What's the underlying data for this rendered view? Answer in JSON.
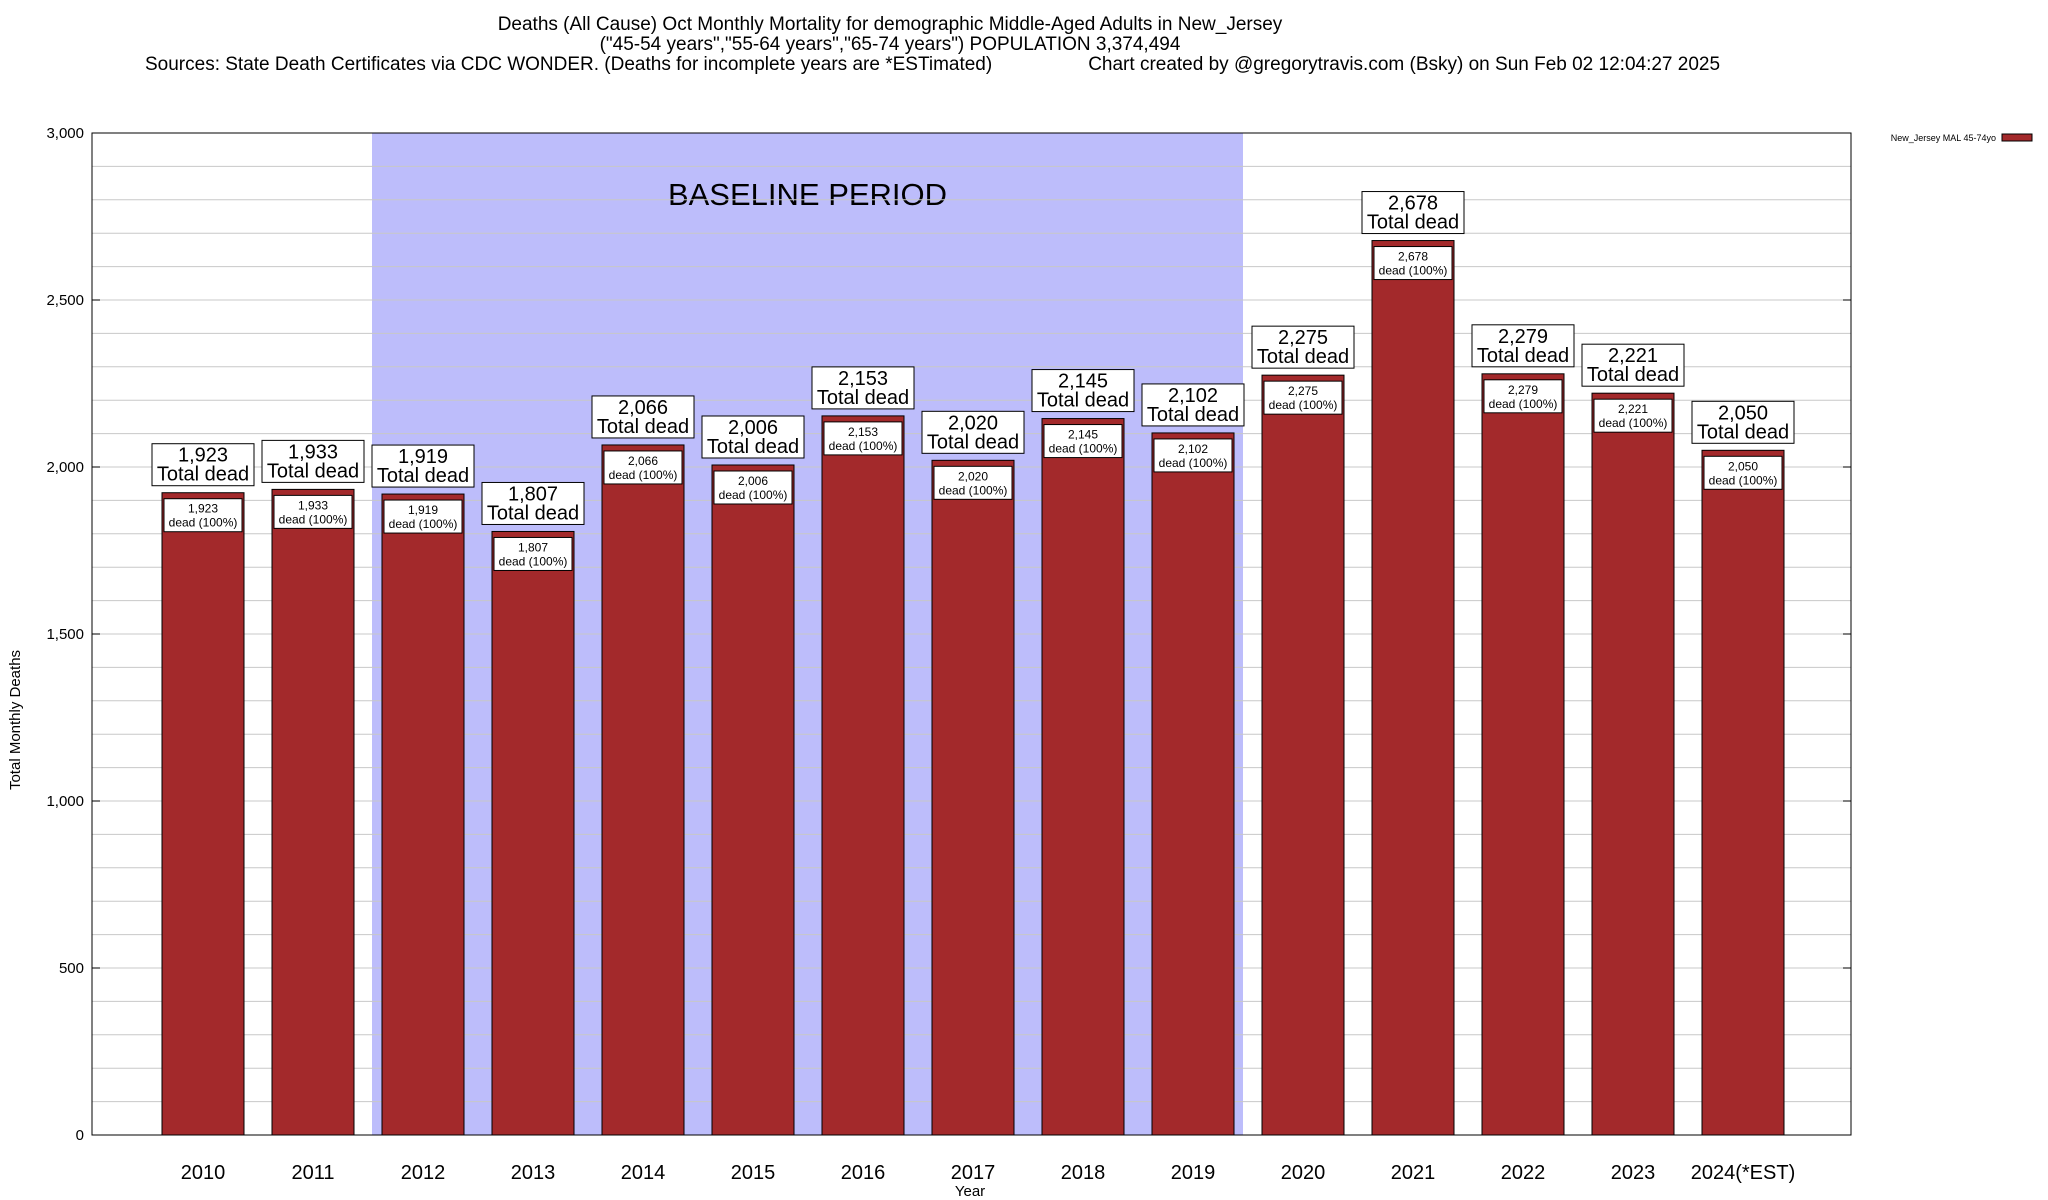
{
  "chart_data": {
    "type": "bar",
    "title": "Deaths (All Cause) Oct Monthly Mortality for demographic Middle-Aged Adults in New_Jersey",
    "subtitle": "(\"45-54 years\",\"55-64 years\",\"65-74 years\") POPULATION 3,374,494",
    "sources": "Sources: State Death Certificates via CDC WONDER. (Deaths for incomplete years are *ESTimated)",
    "credit": "Chart created by @gregorytravis.com (Bsky) on Sun Feb 02 12:04:27 2025",
    "xlabel": "Year",
    "ylabel": "Total Monthly Deaths",
    "ylim": [
      0,
      3000
    ],
    "yticks": [
      0,
      500,
      1000,
      1500,
      2000,
      2500,
      3000
    ],
    "ytick_labels": [
      "0",
      "500",
      "1,000",
      "1,500",
      "2,000",
      "2,500",
      "3,000"
    ],
    "grid": true,
    "legend": {
      "position": "top-right",
      "label": "New_Jersey MAL 45-74yo"
    },
    "categories": [
      "2010",
      "2011",
      "2012",
      "2013",
      "2014",
      "2015",
      "2016",
      "2017",
      "2018",
      "2019",
      "2020",
      "2021",
      "2022",
      "2023",
      "2024(*EST)"
    ],
    "values": [
      1923,
      1933,
      1919,
      1807,
      2066,
      2006,
      2153,
      2020,
      2145,
      2102,
      2275,
      2678,
      2279,
      2221,
      2050
    ],
    "value_labels": [
      "1,923",
      "1,933",
      "1,919",
      "1,807",
      "2,066",
      "2,006",
      "2,153",
      "2,020",
      "2,145",
      "2,102",
      "2,275",
      "2,678",
      "2,279",
      "2,221",
      "2,050"
    ],
    "total_label_suffix": "Total dead",
    "inner_label_suffix": "dead (100%)",
    "baseline": {
      "label": "BASELINE PERIOD",
      "start": "2012",
      "end": "2019"
    },
    "colors": {
      "bar": "#a3292b",
      "baseline": "#bdbdfb",
      "grid": "#c8c8c8"
    }
  }
}
